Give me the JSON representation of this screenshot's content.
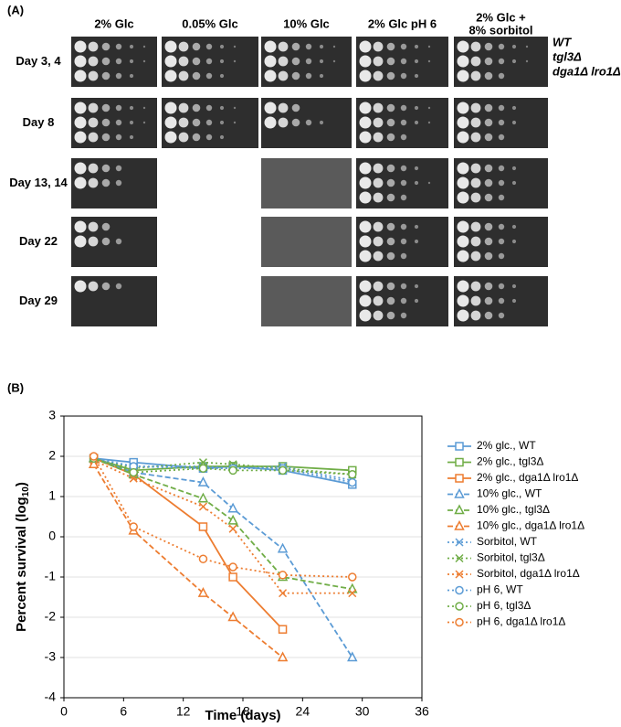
{
  "panel_a": {
    "label": "(A)",
    "columns": [
      "2% Glc",
      "0.05% Glc",
      "10% Glc",
      "2% Glc pH 6",
      [
        "2% Glc +",
        "8% sorbitol"
      ]
    ],
    "rows": [
      "Day 3, 4",
      "Day 8",
      "Day 13, 14",
      "Day 22",
      "Day 29"
    ],
    "strains": [
      "WT",
      "tgl3Δ",
      "dga1Δ lro1Δ"
    ]
  },
  "chart_data": {
    "type": "line",
    "label": "(B)",
    "xlabel": "Time (days)",
    "ylabel": [
      "Percent survival (log",
      "10",
      ")"
    ],
    "x": [
      3,
      7,
      14,
      17,
      22,
      29
    ],
    "xlim": [
      0,
      36
    ],
    "xticks": [
      0,
      6,
      12,
      18,
      24,
      30,
      36
    ],
    "ylim": [
      -4,
      3
    ],
    "yticks": [
      -4,
      -3,
      -2,
      -1,
      0,
      1,
      2,
      3
    ],
    "grid": true,
    "series": [
      {
        "name": "2% glc., WT",
        "color": "#5b9bd5",
        "dash": "solid",
        "marker": "square",
        "values": [
          1.95,
          1.85,
          1.7,
          1.75,
          1.65,
          1.3
        ]
      },
      {
        "name": "2% glc., tgl3Δ",
        "color": "#70ad47",
        "dash": "solid",
        "marker": "square",
        "values": [
          1.95,
          1.65,
          1.75,
          1.75,
          1.75,
          1.65
        ]
      },
      {
        "name": "2% glc., dga1Δ lro1Δ",
        "color": "#ed7d31",
        "dash": "solid",
        "marker": "square",
        "values": [
          1.95,
          1.55,
          0.25,
          -1.0,
          -2.3,
          null
        ]
      },
      {
        "name": "10% glc., WT",
        "color": "#5b9bd5",
        "dash": "dashed",
        "marker": "triangle",
        "values": [
          1.95,
          1.6,
          1.35,
          0.7,
          -0.3,
          -3.0
        ]
      },
      {
        "name": "10% glc., tgl3Δ",
        "color": "#70ad47",
        "dash": "dashed",
        "marker": "triangle",
        "values": [
          1.95,
          1.55,
          0.95,
          0.4,
          -1.0,
          -1.3
        ]
      },
      {
        "name": "10% glc., dga1Δ lro1Δ",
        "color": "#ed7d31",
        "dash": "dashed",
        "marker": "triangle",
        "values": [
          1.8,
          0.15,
          -1.4,
          -2.0,
          -3.0,
          null
        ]
      },
      {
        "name": "Sorbitol, WT",
        "color": "#5b9bd5",
        "dash": "dotted",
        "marker": "x",
        "values": [
          1.95,
          1.75,
          1.75,
          1.7,
          1.75,
          1.4
        ]
      },
      {
        "name": "Sorbitol, tgl3Δ",
        "color": "#70ad47",
        "dash": "dotted",
        "marker": "x",
        "values": [
          1.95,
          1.7,
          1.85,
          1.8,
          1.7,
          1.55
        ]
      },
      {
        "name": "Sorbitol, dga1Δ lro1Δ",
        "color": "#ed7d31",
        "dash": "dotted",
        "marker": "x",
        "values": [
          1.9,
          1.45,
          0.75,
          0.2,
          -1.4,
          -1.4
        ]
      },
      {
        "name": "pH 6, WT",
        "color": "#5b9bd5",
        "dash": "dotted",
        "marker": "circle",
        "values": [
          1.95,
          1.75,
          1.7,
          1.7,
          1.7,
          1.35
        ]
      },
      {
        "name": "pH 6, tgl3Δ",
        "color": "#70ad47",
        "dash": "dotted",
        "marker": "circle",
        "values": [
          1.95,
          1.6,
          1.7,
          1.65,
          1.65,
          1.55
        ]
      },
      {
        "name": "pH 6, dga1Δ lro1Δ",
        "color": "#ed7d31",
        "dash": "dotted",
        "marker": "circle",
        "values": [
          2.0,
          0.25,
          -0.55,
          -0.75,
          -0.95,
          -1.0
        ]
      }
    ]
  }
}
